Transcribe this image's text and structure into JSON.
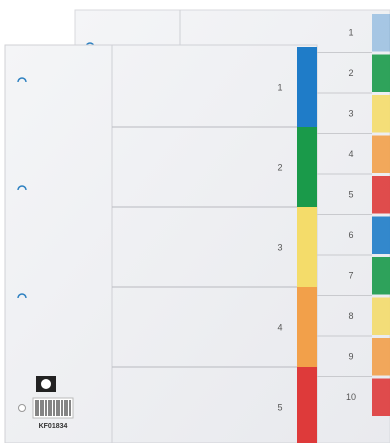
{
  "front_tabs": [
    "1",
    "2",
    "3",
    "4",
    "5"
  ],
  "back_tabs": [
    "1",
    "2",
    "3",
    "4",
    "5",
    "6",
    "7",
    "8",
    "9",
    "10"
  ],
  "product_code": "KF01834"
}
